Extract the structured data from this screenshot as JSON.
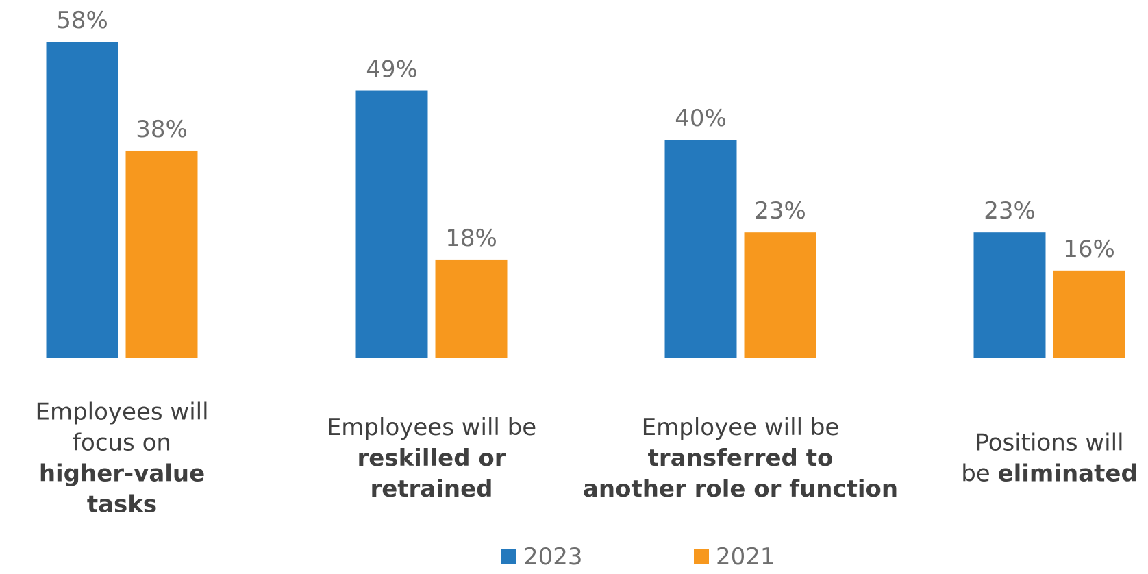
{
  "chart_data": {
    "type": "bar",
    "categories": [
      {
        "lines": [
          [
            {
              "text": "Employees will",
              "bold": false
            }
          ],
          [
            {
              "text": "focus on",
              "bold": false
            }
          ],
          [
            {
              "text": "higher-value",
              "bold": true
            }
          ],
          [
            {
              "text": "tasks",
              "bold": true
            }
          ]
        ]
      },
      {
        "lines": [
          [
            {
              "text": "Employees will be",
              "bold": false
            }
          ],
          [
            {
              "text": "reskilled or",
              "bold": true
            }
          ],
          [
            {
              "text": "retrained",
              "bold": true
            }
          ]
        ]
      },
      {
        "lines": [
          [
            {
              "text": "Employee will be",
              "bold": false
            }
          ],
          [
            {
              "text": "transferred to",
              "bold": true
            }
          ],
          [
            {
              "text": "another role or function",
              "bold": true
            }
          ]
        ]
      },
      {
        "lines": [
          [
            {
              "text": "Positions will",
              "bold": false
            }
          ],
          [
            {
              "text": "be ",
              "bold": false
            },
            {
              "text": "eliminated",
              "bold": true
            }
          ]
        ]
      }
    ],
    "series": [
      {
        "name": "2023",
        "color": "#2479bd",
        "values": [
          58,
          49,
          40,
          23
        ]
      },
      {
        "name": "2021",
        "color": "#f7981e",
        "values": [
          38,
          18,
          23,
          16
        ]
      }
    ],
    "value_suffix": "%",
    "ylim": [
      0,
      58
    ],
    "grid": false,
    "legend_placement": "bottom-center"
  }
}
